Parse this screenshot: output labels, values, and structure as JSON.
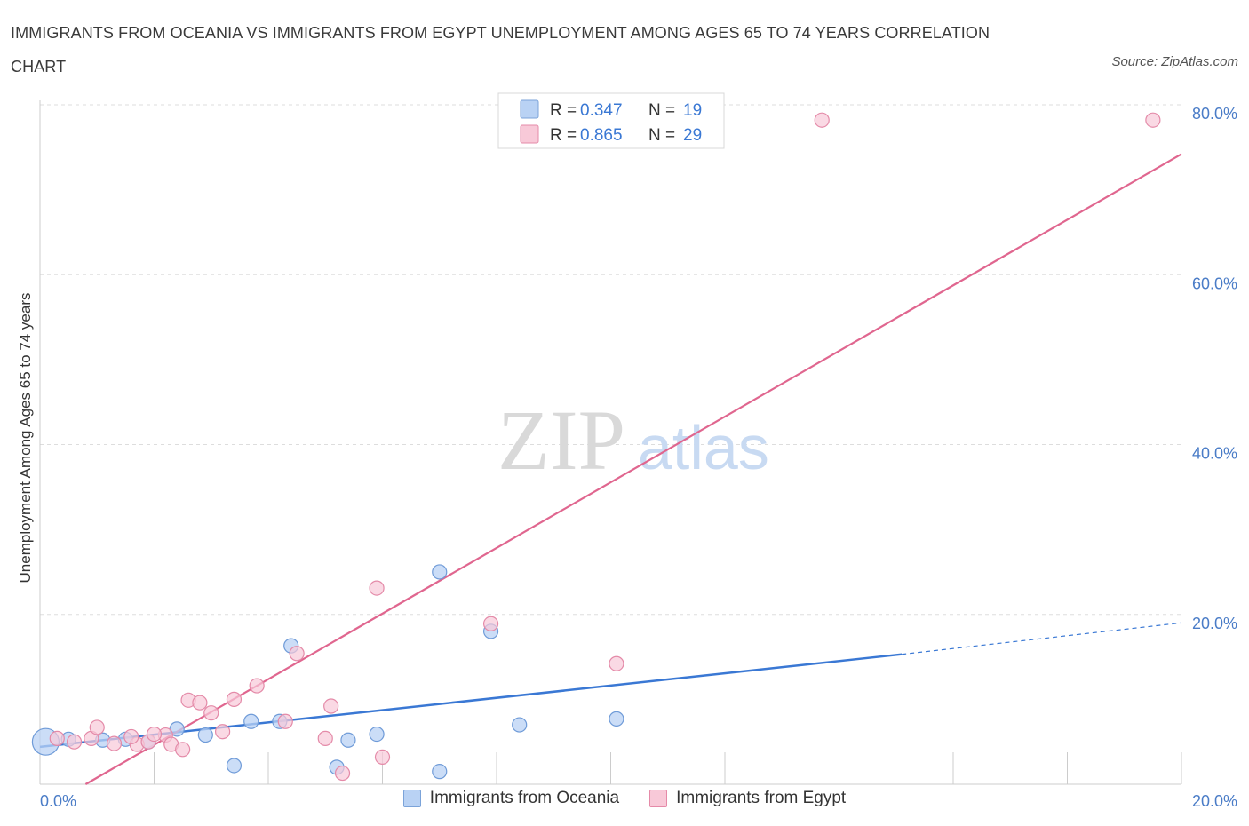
{
  "title": "IMMIGRANTS FROM OCEANIA VS IMMIGRANTS FROM EGYPT UNEMPLOYMENT AMONG AGES 65 TO 74 YEARS CORRELATION CHART",
  "source": "Source: ZipAtlas.com",
  "watermark": {
    "zip": "ZIP",
    "atlas": "atlas"
  },
  "colors": {
    "blue": "#3a78d4",
    "blue_fill": "#b9d2f4",
    "pink": "#e0668f",
    "pink_fill": "#f8c9d8",
    "tick_label": "#4a7cc7",
    "grid": "#dddddd"
  },
  "legend_top": {
    "rows": [
      {
        "r_label": "R =",
        "r_value": "0.347",
        "n_label": "N =",
        "n_value": "19"
      },
      {
        "r_label": "R =",
        "r_value": "0.865",
        "n_label": "N =",
        "n_value": "29"
      }
    ]
  },
  "legend_bottom": {
    "series1": "Immigrants from Oceania",
    "series2": "Immigrants from Egypt"
  },
  "chart_data": {
    "type": "scatter",
    "title": "IMMIGRANTS FROM OCEANIA VS IMMIGRANTS FROM EGYPT UNEMPLOYMENT AMONG AGES 65 TO 74 YEARS CORRELATION CHART",
    "xlabel": "",
    "ylabel": "Unemployment Among Ages 65 to 74 years",
    "xlim": [
      0,
      20
    ],
    "ylim": [
      0,
      80
    ],
    "x_tick_labels": [
      "0.0%",
      "20.0%"
    ],
    "y_ticks": [
      20,
      40,
      60,
      80
    ],
    "y_tick_labels": [
      "20.0%",
      "40.0%",
      "60.0%",
      "80.0%"
    ],
    "x_minor_ticks": [
      0,
      2,
      4,
      6,
      8,
      10,
      12,
      14,
      16,
      18,
      20
    ],
    "grid": true,
    "series": [
      {
        "name": "Immigrants from Oceania",
        "color": "blue",
        "R": 0.347,
        "N": 19,
        "points": [
          [
            0.1,
            5.0
          ],
          [
            1.1,
            5.2
          ],
          [
            1.5,
            5.3
          ],
          [
            1.9,
            5.0
          ],
          [
            2.4,
            6.5
          ],
          [
            2.9,
            5.8
          ],
          [
            3.4,
            2.2
          ],
          [
            3.7,
            7.4
          ],
          [
            4.2,
            7.4
          ],
          [
            4.4,
            16.3
          ],
          [
            5.2,
            2.0
          ],
          [
            5.4,
            5.2
          ],
          [
            5.9,
            5.9
          ],
          [
            7.0,
            1.5
          ],
          [
            7.0,
            25.0
          ],
          [
            7.9,
            18.0
          ],
          [
            8.4,
            7.0
          ],
          [
            10.1,
            7.7
          ],
          [
            0.5,
            5.3
          ]
        ],
        "trend": {
          "x0": 0,
          "y0": 4.4,
          "x1": 15.1,
          "y1": 15.3,
          "dashed_to_x": 20,
          "dashed_to_y": 19.0
        }
      },
      {
        "name": "Immigrants from Egypt",
        "color": "pink",
        "R": 0.865,
        "N": 29,
        "points": [
          [
            0.3,
            5.4
          ],
          [
            0.6,
            5.0
          ],
          [
            0.9,
            5.4
          ],
          [
            1.0,
            6.7
          ],
          [
            1.7,
            4.7
          ],
          [
            1.3,
            4.8
          ],
          [
            1.9,
            5.0
          ],
          [
            2.2,
            5.8
          ],
          [
            2.3,
            4.7
          ],
          [
            2.5,
            4.1
          ],
          [
            2.6,
            9.9
          ],
          [
            2.8,
            9.6
          ],
          [
            3.0,
            8.4
          ],
          [
            3.2,
            6.2
          ],
          [
            3.4,
            10.0
          ],
          [
            3.8,
            11.6
          ],
          [
            4.3,
            7.4
          ],
          [
            4.5,
            15.4
          ],
          [
            5.1,
            9.2
          ],
          [
            5.0,
            5.4
          ],
          [
            5.3,
            1.3
          ],
          [
            5.9,
            23.1
          ],
          [
            6.0,
            3.2
          ],
          [
            7.9,
            18.9
          ],
          [
            10.1,
            14.2
          ],
          [
            13.7,
            78.2
          ],
          [
            19.5,
            78.2
          ],
          [
            1.6,
            5.6
          ],
          [
            2.0,
            5.9
          ]
        ],
        "trend": {
          "x0": 0.8,
          "y0": 0,
          "x1": 20,
          "y1": 74.2
        }
      }
    ]
  }
}
